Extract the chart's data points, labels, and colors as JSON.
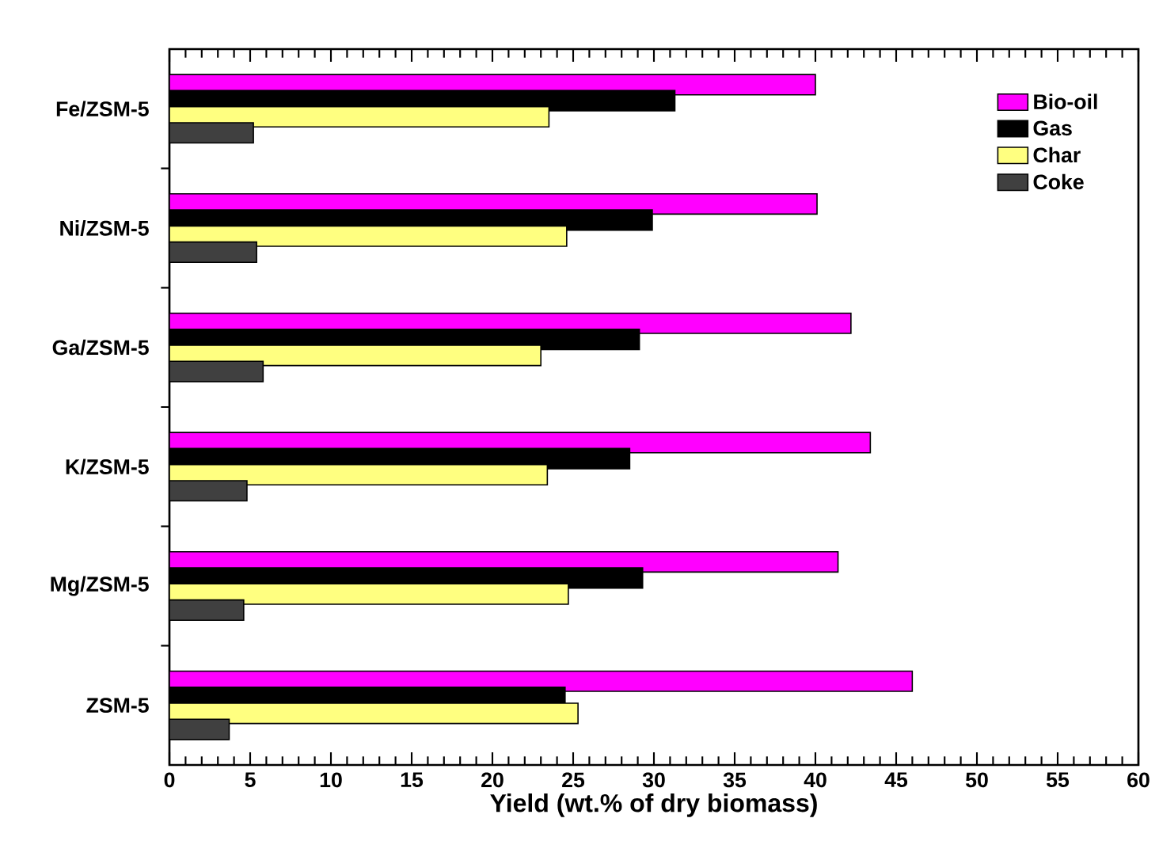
{
  "chart_data": {
    "type": "bar",
    "orientation": "horizontal",
    "xlabel": "Yield (wt.% of dry biomass)",
    "categories": [
      "Fe/ZSM-5",
      "Ni/ZSM-5",
      "Ga/ZSM-5",
      "K/ZSM-5",
      "Mg/ZSM-5",
      "ZSM-5"
    ],
    "series": [
      {
        "name": "Bio-oil",
        "color": "#ff00ff",
        "values": [
          40.0,
          40.1,
          42.2,
          43.4,
          41.4,
          46.0
        ]
      },
      {
        "name": "Gas",
        "color": "#000000",
        "values": [
          31.3,
          29.9,
          29.1,
          28.5,
          29.3,
          24.5
        ]
      },
      {
        "name": "Char",
        "color": "#ffff80",
        "values": [
          23.5,
          24.6,
          23.0,
          23.4,
          24.7,
          25.3
        ]
      },
      {
        "name": "Coke",
        "color": "#404040",
        "values": [
          5.2,
          5.4,
          5.8,
          4.8,
          4.6,
          3.7
        ]
      }
    ],
    "xlim": [
      0,
      60
    ],
    "xticks": [
      0,
      5,
      10,
      15,
      20,
      25,
      30,
      35,
      40,
      45,
      50,
      55,
      60
    ],
    "legend": "top right",
    "grid": false
  }
}
